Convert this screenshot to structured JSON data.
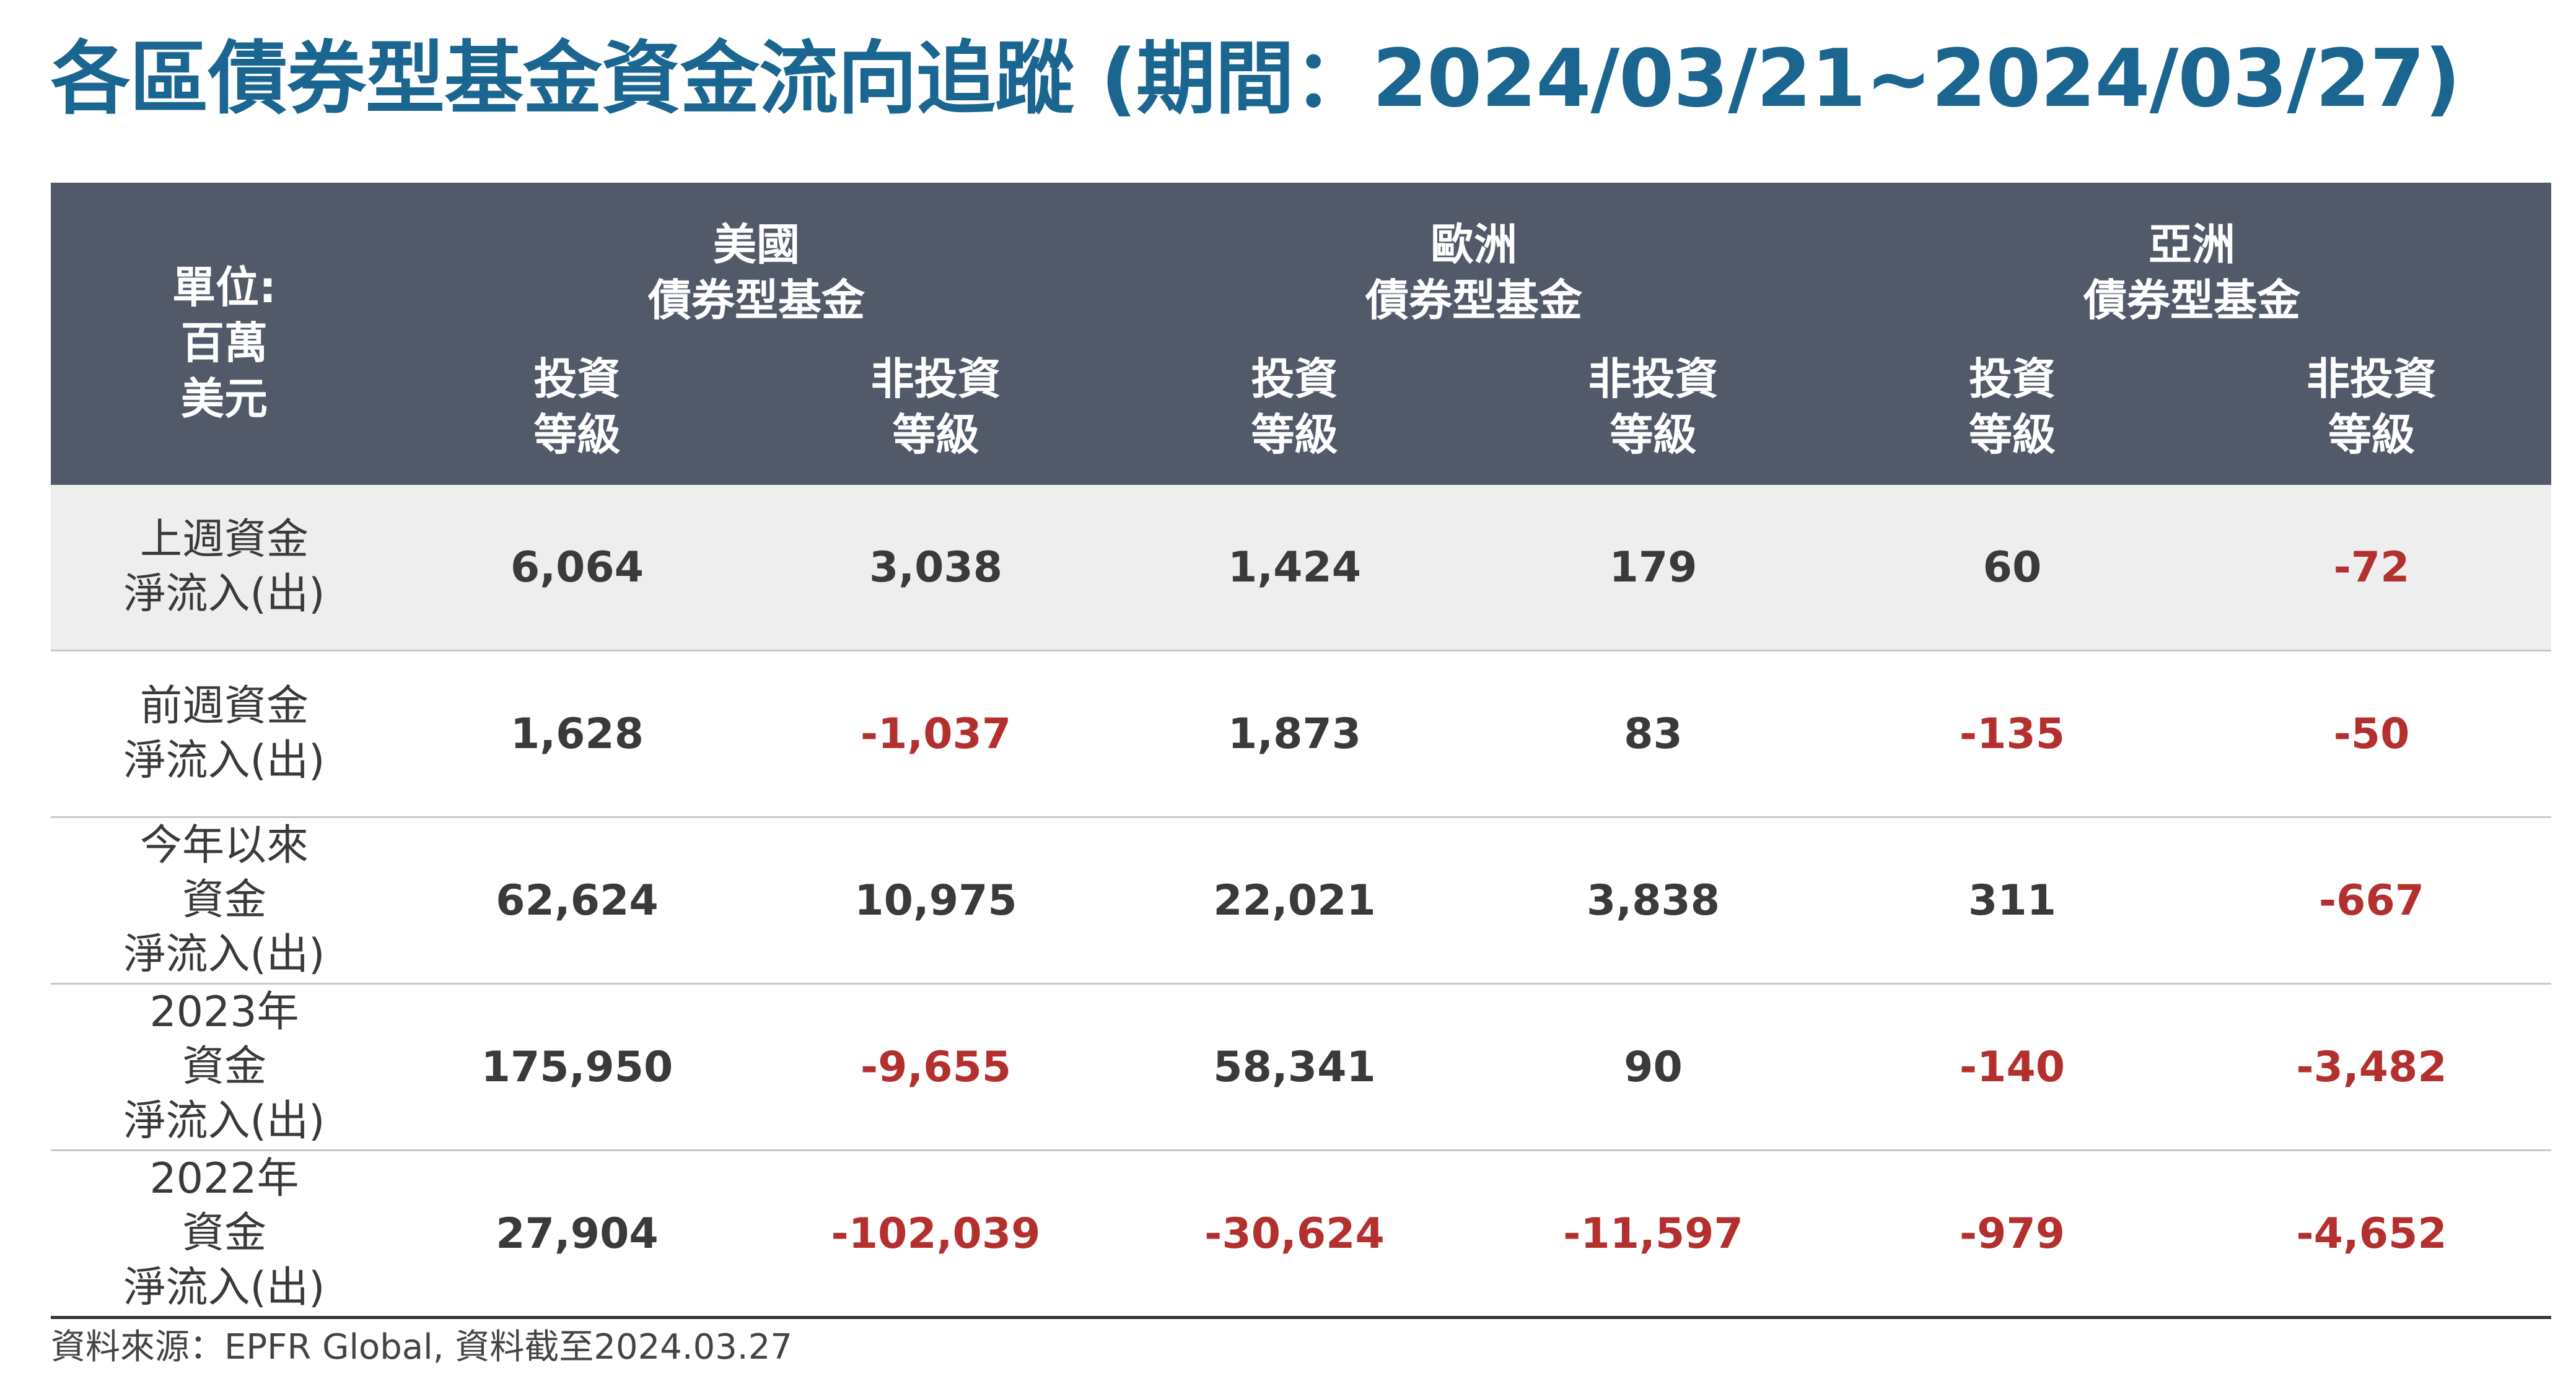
{
  "title": "各區債券型基金資金流向追蹤 (期間：2024/03/21~2024/03/27)",
  "table": {
    "unit_label": [
      "單位:",
      "百萬",
      "美元"
    ],
    "regions": [
      {
        "name": "美國",
        "sub": "債券型基金"
      },
      {
        "name": "歐洲",
        "sub": "債券型基金"
      },
      {
        "name": "亞洲",
        "sub": "債券型基金"
      }
    ],
    "grades": [
      {
        "line1": "投資",
        "line2": "等級"
      },
      {
        "line1": "非投資",
        "line2": "等級"
      },
      {
        "line1": "投資",
        "line2": "等級"
      },
      {
        "line1": "非投資",
        "line2": "等級"
      },
      {
        "line1": "投資",
        "line2": "等級"
      },
      {
        "line1": "非投資",
        "line2": "等級"
      }
    ],
    "rows": [
      {
        "label": [
          "上週資金",
          "淨流入(出)"
        ],
        "values": [
          "6,064",
          "3,038",
          "1,424",
          "179",
          "60",
          "-72"
        ]
      },
      {
        "label": [
          "前週資金",
          "淨流入(出)"
        ],
        "values": [
          "1,628",
          "-1,037",
          "1,873",
          "83",
          "-135",
          "-50"
        ]
      },
      {
        "label": [
          "今年以來",
          "資金",
          "淨流入(出)"
        ],
        "values": [
          "62,624",
          "10,975",
          "22,021",
          "3,838",
          "311",
          "-667"
        ]
      },
      {
        "label": [
          "2023年",
          "資金",
          "淨流入(出)"
        ],
        "values": [
          "175,950",
          "-9,655",
          "58,341",
          "90",
          "-140",
          "-3,482"
        ]
      },
      {
        "label": [
          "2022年",
          "資金",
          "淨流入(出)"
        ],
        "values": [
          "27,904",
          "-102,039",
          "-30,624",
          "-11,597",
          "-979",
          "-4,652"
        ]
      }
    ]
  },
  "colors": {
    "title": "#1a6691",
    "header_bg": "#525a69",
    "negative": "#b3302e",
    "first_row_bg": "#eeeeef"
  },
  "source": "資料來源：EPFR Global, 資料截至2024.03.27"
}
